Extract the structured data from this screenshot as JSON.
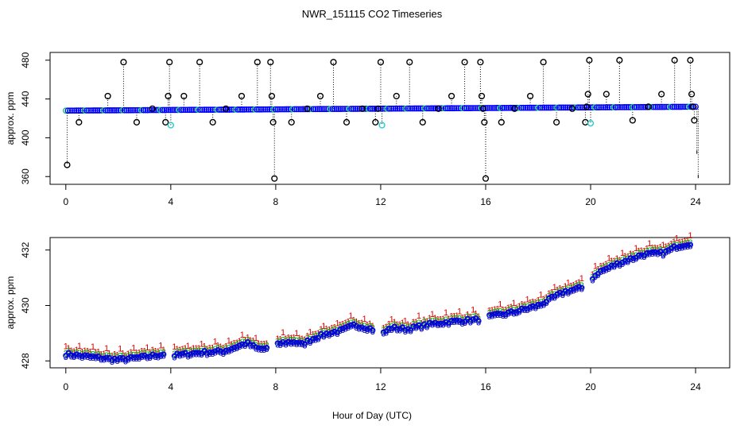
{
  "title": "NWR_151115  CO2 Timeseries",
  "xlabel": "Hour of Day (UTC)",
  "chart_data": [
    {
      "type": "scatter",
      "panel": "top",
      "ylabel": "approx. ppm",
      "xlim": [
        -0.6,
        25.3
      ],
      "ylim": [
        352,
        488
      ],
      "x_ticks": [
        0,
        4,
        8,
        12,
        16,
        20,
        24
      ],
      "y_ticks": [
        360,
        400,
        440,
        480
      ],
      "baseline": {
        "start": 428,
        "end": 432
      },
      "spikes": [
        {
          "x": 0.05,
          "y": 372
        },
        {
          "x": 0.5,
          "y": 416
        },
        {
          "x": 1.6,
          "y": 443
        },
        {
          "x": 2.2,
          "y": 478
        },
        {
          "x": 2.7,
          "y": 416
        },
        {
          "x": 3.3,
          "y": 430
        },
        {
          "x": 3.8,
          "y": 416
        },
        {
          "x": 3.9,
          "y": 443
        },
        {
          "x": 3.95,
          "y": 478
        },
        {
          "x": 4.0,
          "y": 413,
          "color": "cyan"
        },
        {
          "x": 4.5,
          "y": 443
        },
        {
          "x": 5.1,
          "y": 478
        },
        {
          "x": 5.6,
          "y": 416
        },
        {
          "x": 6.1,
          "y": 430
        },
        {
          "x": 6.7,
          "y": 443
        },
        {
          "x": 7.3,
          "y": 478
        },
        {
          "x": 7.8,
          "y": 478
        },
        {
          "x": 7.85,
          "y": 443
        },
        {
          "x": 7.9,
          "y": 416
        },
        {
          "x": 7.95,
          "y": 358
        },
        {
          "x": 8.6,
          "y": 416
        },
        {
          "x": 9.2,
          "y": 430
        },
        {
          "x": 9.7,
          "y": 443
        },
        {
          "x": 10.2,
          "y": 478
        },
        {
          "x": 10.7,
          "y": 416
        },
        {
          "x": 11.3,
          "y": 430
        },
        {
          "x": 11.8,
          "y": 416
        },
        {
          "x": 11.9,
          "y": 430
        },
        {
          "x": 12.0,
          "y": 478
        },
        {
          "x": 12.05,
          "y": 413,
          "color": "cyan"
        },
        {
          "x": 12.6,
          "y": 443
        },
        {
          "x": 13.1,
          "y": 478
        },
        {
          "x": 13.6,
          "y": 416
        },
        {
          "x": 14.2,
          "y": 430
        },
        {
          "x": 14.7,
          "y": 443
        },
        {
          "x": 15.2,
          "y": 478
        },
        {
          "x": 15.8,
          "y": 478
        },
        {
          "x": 15.85,
          "y": 443
        },
        {
          "x": 15.9,
          "y": 430
        },
        {
          "x": 15.95,
          "y": 416
        },
        {
          "x": 16.0,
          "y": 358
        },
        {
          "x": 16.6,
          "y": 416
        },
        {
          "x": 17.1,
          "y": 430
        },
        {
          "x": 17.7,
          "y": 443
        },
        {
          "x": 18.2,
          "y": 478
        },
        {
          "x": 18.7,
          "y": 416
        },
        {
          "x": 19.3,
          "y": 430
        },
        {
          "x": 19.8,
          "y": 416
        },
        {
          "x": 19.85,
          "y": 432
        },
        {
          "x": 19.9,
          "y": 445
        },
        {
          "x": 19.95,
          "y": 480
        },
        {
          "x": 20.0,
          "y": 415,
          "color": "cyan"
        },
        {
          "x": 20.6,
          "y": 445
        },
        {
          "x": 21.1,
          "y": 480
        },
        {
          "x": 21.6,
          "y": 418
        },
        {
          "x": 22.2,
          "y": 432
        },
        {
          "x": 22.7,
          "y": 445
        },
        {
          "x": 23.2,
          "y": 480
        },
        {
          "x": 23.8,
          "y": 480
        },
        {
          "x": 23.85,
          "y": 445
        },
        {
          "x": 23.9,
          "y": 432
        },
        {
          "x": 23.95,
          "y": 418
        },
        {
          "x": 24.05,
          "y": 385,
          "tick": true
        },
        {
          "x": 24.1,
          "y": 360,
          "tick": true
        }
      ]
    },
    {
      "type": "scatter",
      "panel": "bottom",
      "ylabel": "approx. ppm",
      "xlim": [
        -0.6,
        25.3
      ],
      "ylim": [
        427.75,
        432.45
      ],
      "x_ticks": [
        0,
        4,
        8,
        12,
        16,
        20,
        24
      ],
      "y_ticks": [
        428,
        430,
        432
      ],
      "series_markers": [
        {
          "marker": "1",
          "color": "#dd0000",
          "offset": 0.17
        },
        {
          "marker": "2",
          "color": "#00aa00",
          "offset": 0.09
        },
        {
          "marker": "o",
          "color": "#0000ff",
          "offset": 0
        },
        {
          "marker": "3",
          "color": "#0000aa",
          "offset": -0.04
        }
      ],
      "trend": [
        {
          "x": 0.0,
          "y": 428.25
        },
        {
          "x": 1.0,
          "y": 428.15
        },
        {
          "x": 2.0,
          "y": 428.05
        },
        {
          "x": 3.0,
          "y": 428.15
        },
        {
          "x": 3.7,
          "y": 428.25
        },
        {
          "x": 4.1,
          "y": 428.2
        },
        {
          "x": 5.0,
          "y": 428.3
        },
        {
          "x": 6.0,
          "y": 428.35
        },
        {
          "x": 6.9,
          "y": 428.65
        },
        {
          "x": 7.3,
          "y": 428.45
        },
        {
          "x": 7.8,
          "y": 428.45
        },
        {
          "x": 8.2,
          "y": 428.65
        },
        {
          "x": 8.7,
          "y": 428.7
        },
        {
          "x": 9.0,
          "y": 428.6
        },
        {
          "x": 9.5,
          "y": 428.85
        },
        {
          "x": 10.0,
          "y": 429.0
        },
        {
          "x": 10.5,
          "y": 429.1
        },
        {
          "x": 11.0,
          "y": 429.3
        },
        {
          "x": 11.5,
          "y": 429.2
        },
        {
          "x": 11.95,
          "y": 429.05
        },
        {
          "x": 12.1,
          "y": 429.0
        },
        {
          "x": 12.4,
          "y": 429.2
        },
        {
          "x": 13.0,
          "y": 429.15
        },
        {
          "x": 14.0,
          "y": 429.35
        },
        {
          "x": 15.0,
          "y": 429.45
        },
        {
          "x": 15.8,
          "y": 429.5
        },
        {
          "x": 16.1,
          "y": 429.6
        },
        {
          "x": 17.0,
          "y": 429.75
        },
        {
          "x": 18.0,
          "y": 430.0
        },
        {
          "x": 19.0,
          "y": 430.5
        },
        {
          "x": 19.7,
          "y": 430.65
        },
        {
          "x": 20.3,
          "y": 431.2
        },
        {
          "x": 21.0,
          "y": 431.5
        },
        {
          "x": 22.0,
          "y": 431.85
        },
        {
          "x": 22.8,
          "y": 431.9
        },
        {
          "x": 23.3,
          "y": 432.15
        },
        {
          "x": 23.8,
          "y": 432.25
        }
      ],
      "gaps": [
        [
          3.75,
          4.05
        ],
        [
          7.75,
          8.05
        ],
        [
          11.75,
          12.05
        ],
        [
          15.75,
          16.05
        ],
        [
          19.75,
          20.05
        ]
      ]
    }
  ]
}
